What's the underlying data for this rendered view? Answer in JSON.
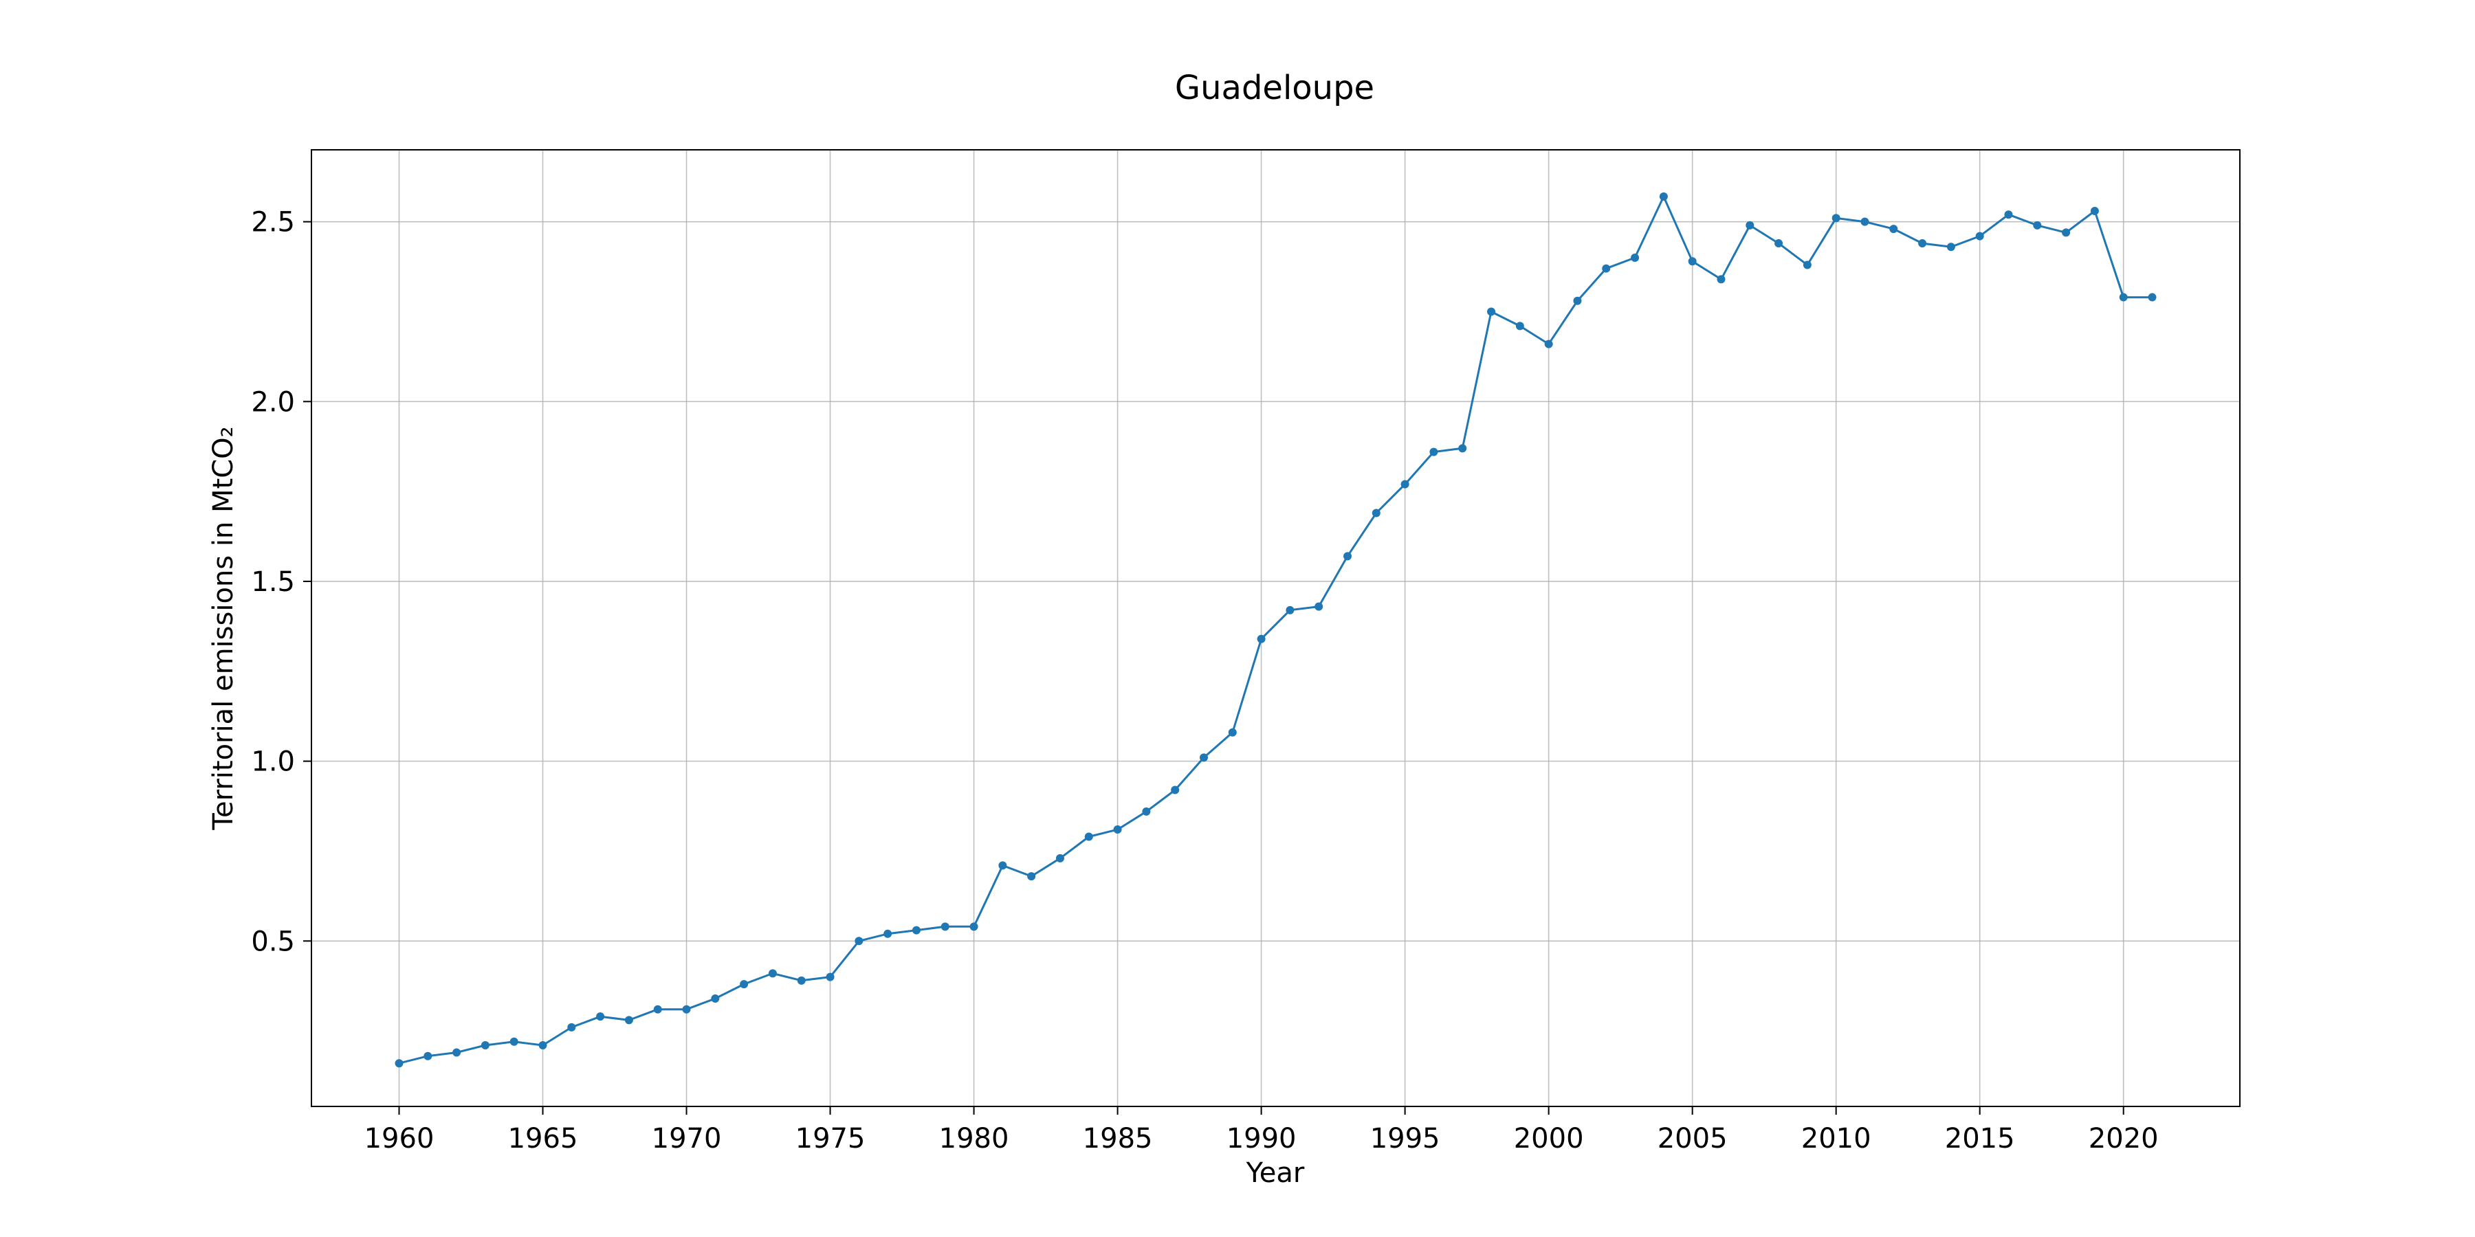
{
  "chart_data": {
    "type": "line",
    "title": "Guadeloupe",
    "xlabel": "Year",
    "ylabel": "Territorial emissions in MtCO₂",
    "xlim": [
      1956.95,
      2024.05
    ],
    "ylim": [
      0.04,
      2.7
    ],
    "x_ticks": [
      1960,
      1965,
      1970,
      1975,
      1980,
      1985,
      1990,
      1995,
      2000,
      2005,
      2010,
      2015,
      2020
    ],
    "y_ticks": [
      0.5,
      1.0,
      1.5,
      2.0,
      2.5
    ],
    "y_tick_labels": [
      "0.5",
      "1.0",
      "1.5",
      "2.0",
      "2.5"
    ],
    "grid": true,
    "color": "#1f77b4",
    "series": [
      {
        "x": [
          1960,
          1961,
          1962,
          1963,
          1964,
          1965,
          1966,
          1967,
          1968,
          1969,
          1970,
          1971,
          1972,
          1973,
          1974,
          1975,
          1976,
          1977,
          1978,
          1979,
          1980,
          1981,
          1982,
          1983,
          1984,
          1985,
          1986,
          1987,
          1988,
          1989,
          1990,
          1991,
          1992,
          1993,
          1994,
          1995,
          1996,
          1997,
          1998,
          1999,
          2000,
          2001,
          2002,
          2003,
          2004,
          2005,
          2006,
          2007,
          2008,
          2009,
          2010,
          2011,
          2012,
          2013,
          2014,
          2015,
          2016,
          2017,
          2018,
          2019,
          2020,
          2021
        ],
        "values": [
          0.16,
          0.18,
          0.19,
          0.21,
          0.22,
          0.21,
          0.26,
          0.29,
          0.28,
          0.31,
          0.31,
          0.34,
          0.38,
          0.41,
          0.39,
          0.4,
          0.5,
          0.52,
          0.53,
          0.54,
          0.54,
          0.71,
          0.68,
          0.73,
          0.79,
          0.81,
          0.86,
          0.92,
          1.01,
          1.08,
          1.34,
          1.42,
          1.43,
          1.57,
          1.69,
          1.77,
          1.86,
          1.87,
          2.25,
          2.21,
          2.16,
          2.28,
          2.37,
          2.4,
          2.57,
          2.39,
          2.34,
          2.49,
          2.44,
          2.38,
          2.51,
          2.5,
          2.48,
          2.44,
          2.43,
          2.46,
          2.52,
          2.49,
          2.47,
          2.53,
          2.29,
          2.29
        ]
      }
    ]
  }
}
